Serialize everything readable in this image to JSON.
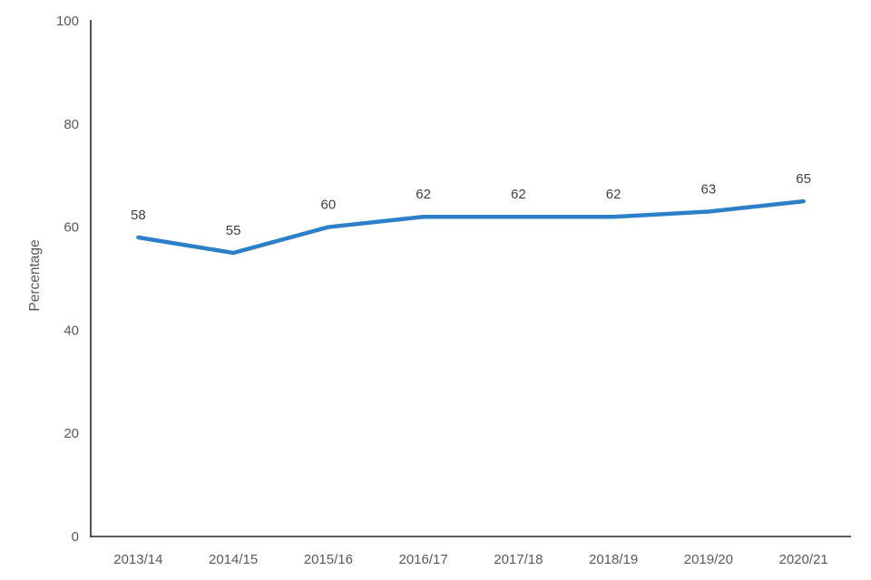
{
  "chart_data": {
    "type": "line",
    "title": "",
    "categories": [
      "2013/14",
      "2014/15",
      "2015/16",
      "2016/17",
      "2017/18",
      "2018/19",
      "2019/20",
      "2020/21"
    ],
    "series": [
      {
        "name": "Percentage",
        "values": [
          58,
          55,
          60,
          62,
          62,
          62,
          63,
          65
        ]
      }
    ],
    "xlabel": "",
    "ylabel": "Percentage",
    "ylim": [
      0,
      100
    ],
    "yticks": [
      0,
      20,
      40,
      60,
      80,
      100
    ],
    "grid": false,
    "legend": "none",
    "data_labels_position": "above",
    "colors": {
      "line": "#2B80C9",
      "axis": "#262626",
      "tick_labels": "#595959",
      "data_labels": "#404040",
      "background": "#ffffff"
    }
  }
}
